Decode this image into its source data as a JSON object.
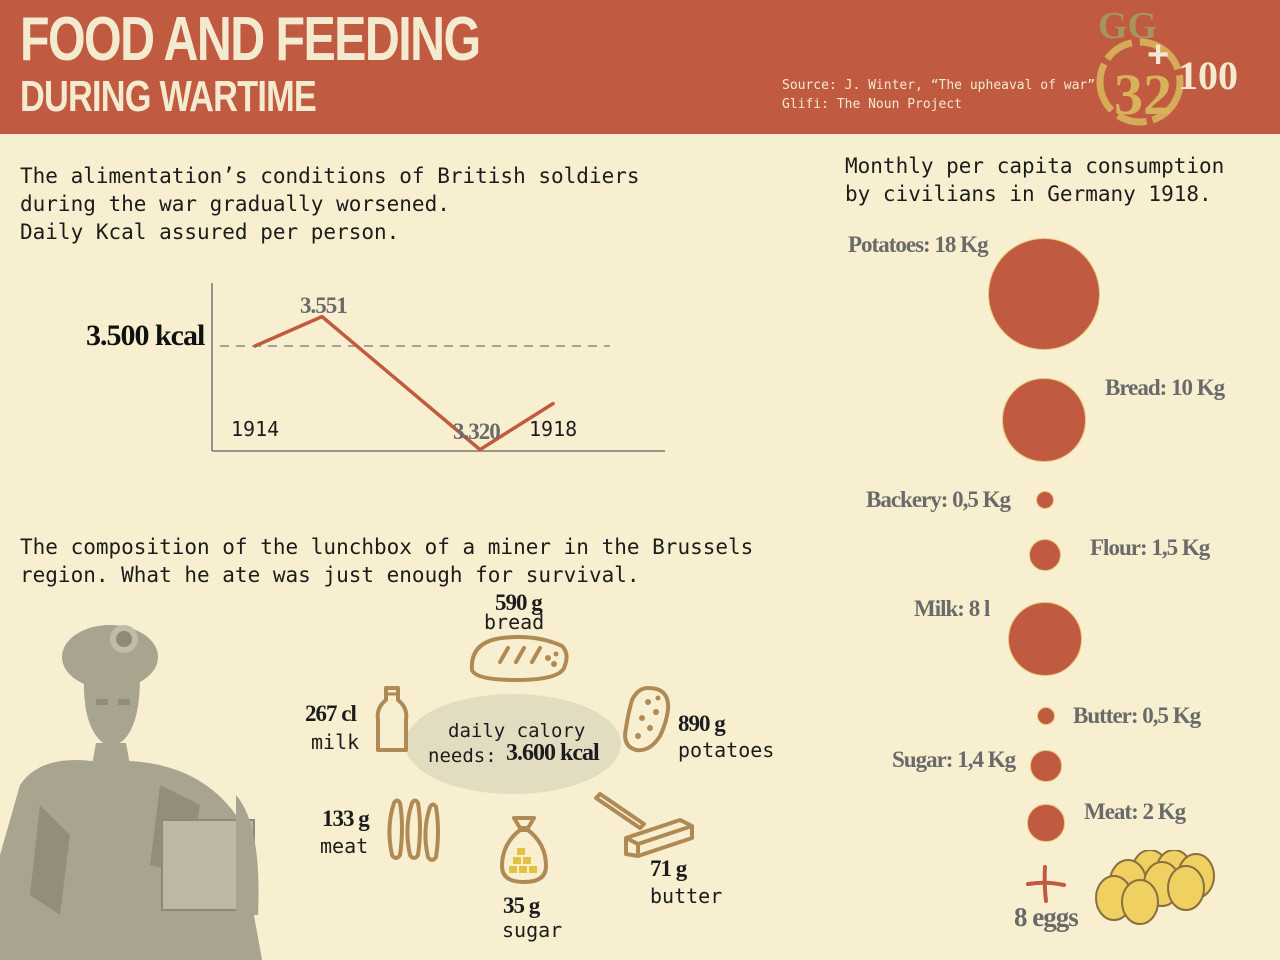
{
  "header": {
    "title": "FOOD AND FEEDING",
    "subtitle": "DURING WARTIME",
    "source_line": "Source: J. Winter, “The upheaval of war”",
    "credit_line": "Glifi: The Noun Project",
    "logo_letters": "GG",
    "logo_number": "32",
    "logo_plus": "+",
    "logo_hundred": "100"
  },
  "kcal_section": {
    "intro": "The alimentation’s conditions of British soldiers\nduring the war gradually worsened.\nDaily Kcal assured per person.",
    "chart_data": {
      "type": "line",
      "x": [
        "1914",
        "",
        "",
        "1918"
      ],
      "values": [
        3500,
        3551,
        3320,
        3400
      ],
      "reference_line": 3500,
      "reference_label": "3.500 kcal",
      "labels": {
        "peak": "3.551",
        "low": "3.320",
        "start_year": "1914",
        "end_year": "1918"
      }
    }
  },
  "lunchbox": {
    "intro": "The composition of the lunchbox of a miner in the Brussels\nregion. What he ate was just enough for survival.",
    "center_line1": "daily   calory",
    "center_line2": "needs:",
    "center_value": "3.600 kcal",
    "items": [
      {
        "value": "590 g",
        "name": "bread",
        "icon": "bread-icon"
      },
      {
        "value": "890 g",
        "name": "potatoes",
        "icon": "potato-icon"
      },
      {
        "value": "71 g",
        "name": "butter",
        "icon": "butter-icon"
      },
      {
        "value": "35 g",
        "name": "sugar",
        "icon": "sugar-sack-icon"
      },
      {
        "value": "133 g",
        "name": "meat",
        "icon": "sausages-icon"
      },
      {
        "value": "267 cl",
        "name": "milk",
        "icon": "milk-bottle-icon"
      }
    ]
  },
  "germany": {
    "title": "Monthly per capita consumption\nby civilians in Germany 1918.",
    "items": [
      {
        "label": "Potatoes: 18 Kg",
        "amount": 18
      },
      {
        "label": "Bread: 10 Kg",
        "amount": 10
      },
      {
        "label": "Backery: 0,5 Kg",
        "amount": 0.5
      },
      {
        "label": "Flour: 1,5 Kg",
        "amount": 1.5
      },
      {
        "label": "Milk: 8 l",
        "amount": 8
      },
      {
        "label": "Butter: 0,5 Kg",
        "amount": 0.5
      },
      {
        "label": "Sugar: 1,4 Kg",
        "amount": 1.4
      },
      {
        "label": "Meat: 2 Kg",
        "amount": 2
      }
    ],
    "plus_sign": "+",
    "eggs_label": "8 eggs",
    "eggs_count": 8
  },
  "colors": {
    "brand_red": "#c05a40",
    "cream": "#f7efcf",
    "icon_brown": "#b08a55",
    "logo_gold": "#d8b25a",
    "egg_yellow": "#f0d060"
  }
}
